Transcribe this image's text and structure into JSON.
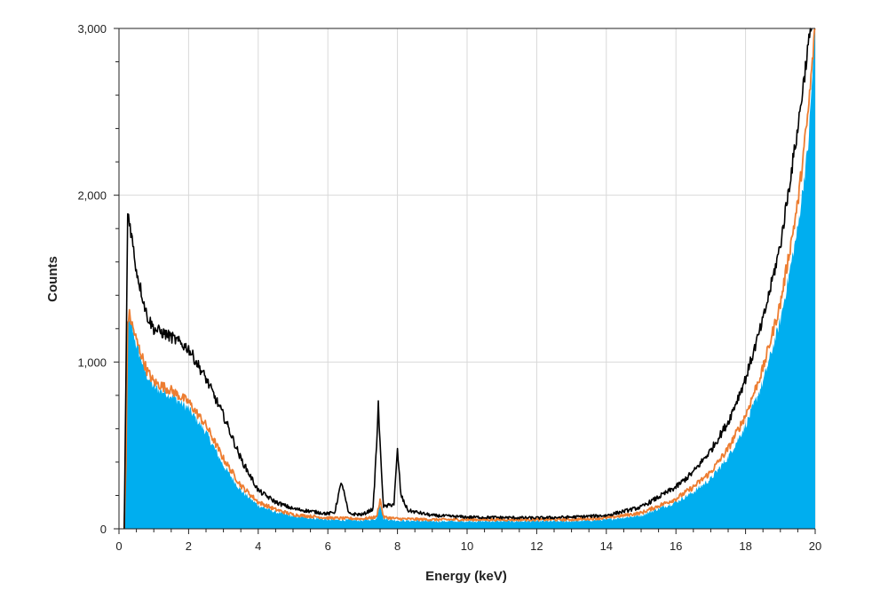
{
  "chart_data": {
    "type": "area",
    "title": "",
    "xlabel": "Energy (keV)",
    "ylabel": "Counts",
    "xlim": [
      0,
      20
    ],
    "ylim": [
      0,
      3000
    ],
    "x_ticks": [
      0,
      2,
      4,
      6,
      8,
      10,
      12,
      14,
      16,
      18,
      20
    ],
    "y_ticks": [
      0,
      1000,
      2000,
      3000
    ],
    "y_tick_labels": [
      "0",
      "1,000",
      "2,000",
      "3,000"
    ],
    "grid": "vertical and horizontal",
    "legend": "none",
    "series": [
      {
        "style": "filled area",
        "color": "#00AEEF",
        "points": [
          [
            0.0,
            0
          ],
          [
            0.15,
            0
          ],
          [
            0.2,
            300
          ],
          [
            0.25,
            1200
          ],
          [
            0.3,
            1270
          ],
          [
            0.5,
            1100
          ],
          [
            0.8,
            920
          ],
          [
            1.0,
            850
          ],
          [
            1.5,
            800
          ],
          [
            2.0,
            720
          ],
          [
            2.5,
            580
          ],
          [
            3.0,
            380
          ],
          [
            3.5,
            230
          ],
          [
            4.0,
            140
          ],
          [
            4.5,
            100
          ],
          [
            5.0,
            75
          ],
          [
            6.0,
            55
          ],
          [
            7.0,
            50
          ],
          [
            7.4,
            60
          ],
          [
            7.5,
            150
          ],
          [
            7.6,
            60
          ],
          [
            8.0,
            50
          ],
          [
            9.0,
            45
          ],
          [
            10.0,
            45
          ],
          [
            12.0,
            45
          ],
          [
            13.0,
            45
          ],
          [
            14.0,
            55
          ],
          [
            15.0,
            80
          ],
          [
            16.0,
            160
          ],
          [
            16.5,
            220
          ],
          [
            17.0,
            300
          ],
          [
            17.5,
            430
          ],
          [
            18.0,
            620
          ],
          [
            18.5,
            880
          ],
          [
            19.0,
            1250
          ],
          [
            19.5,
            1800
          ],
          [
            19.8,
            2300
          ],
          [
            20.0,
            3000
          ]
        ]
      },
      {
        "style": "line",
        "color": "#ED7D31",
        "points": [
          [
            0.15,
            0
          ],
          [
            0.2,
            400
          ],
          [
            0.25,
            1250
          ],
          [
            0.3,
            1280
          ],
          [
            0.5,
            1130
          ],
          [
            0.8,
            950
          ],
          [
            1.0,
            880
          ],
          [
            1.5,
            830
          ],
          [
            2.0,
            760
          ],
          [
            2.5,
            620
          ],
          [
            3.0,
            420
          ],
          [
            3.5,
            260
          ],
          [
            4.0,
            160
          ],
          [
            4.5,
            115
          ],
          [
            5.0,
            85
          ],
          [
            6.0,
            65
          ],
          [
            7.0,
            60
          ],
          [
            7.4,
            70
          ],
          [
            7.5,
            175
          ],
          [
            7.6,
            70
          ],
          [
            8.0,
            60
          ],
          [
            9.0,
            55
          ],
          [
            10.0,
            55
          ],
          [
            12.0,
            55
          ],
          [
            13.0,
            55
          ],
          [
            14.0,
            65
          ],
          [
            15.0,
            95
          ],
          [
            16.0,
            180
          ],
          [
            16.5,
            250
          ],
          [
            17.0,
            340
          ],
          [
            17.5,
            480
          ],
          [
            18.0,
            680
          ],
          [
            18.5,
            960
          ],
          [
            19.0,
            1350
          ],
          [
            19.5,
            1950
          ],
          [
            19.8,
            2500
          ],
          [
            20.0,
            3000
          ]
        ]
      },
      {
        "style": "line",
        "color": "#000000",
        "points": [
          [
            0.15,
            0
          ],
          [
            0.2,
            900
          ],
          [
            0.25,
            1900
          ],
          [
            0.3,
            1850
          ],
          [
            0.5,
            1550
          ],
          [
            0.8,
            1280
          ],
          [
            1.0,
            1200
          ],
          [
            1.5,
            1150
          ],
          [
            2.0,
            1080
          ],
          [
            2.5,
            900
          ],
          [
            3.0,
            680
          ],
          [
            3.5,
            420
          ],
          [
            4.0,
            230
          ],
          [
            4.5,
            160
          ],
          [
            5.0,
            120
          ],
          [
            6.0,
            90
          ],
          [
            6.2,
            100
          ],
          [
            6.3,
            200
          ],
          [
            6.4,
            280
          ],
          [
            6.5,
            180
          ],
          [
            6.6,
            90
          ],
          [
            7.0,
            85
          ],
          [
            7.3,
            120
          ],
          [
            7.4,
            500
          ],
          [
            7.45,
            750
          ],
          [
            7.5,
            500
          ],
          [
            7.6,
            130
          ],
          [
            7.9,
            150
          ],
          [
            8.0,
            470
          ],
          [
            8.1,
            200
          ],
          [
            8.3,
            110
          ],
          [
            9.0,
            80
          ],
          [
            10.0,
            70
          ],
          [
            12.0,
            65
          ],
          [
            13.0,
            70
          ],
          [
            14.0,
            80
          ],
          [
            15.0,
            130
          ],
          [
            16.0,
            250
          ],
          [
            16.5,
            340
          ],
          [
            17.0,
            470
          ],
          [
            17.5,
            640
          ],
          [
            18.0,
            900
          ],
          [
            18.5,
            1250
          ],
          [
            19.0,
            1700
          ],
          [
            19.5,
            2400
          ],
          [
            19.8,
            2900
          ],
          [
            19.9,
            3000
          ]
        ]
      }
    ]
  }
}
